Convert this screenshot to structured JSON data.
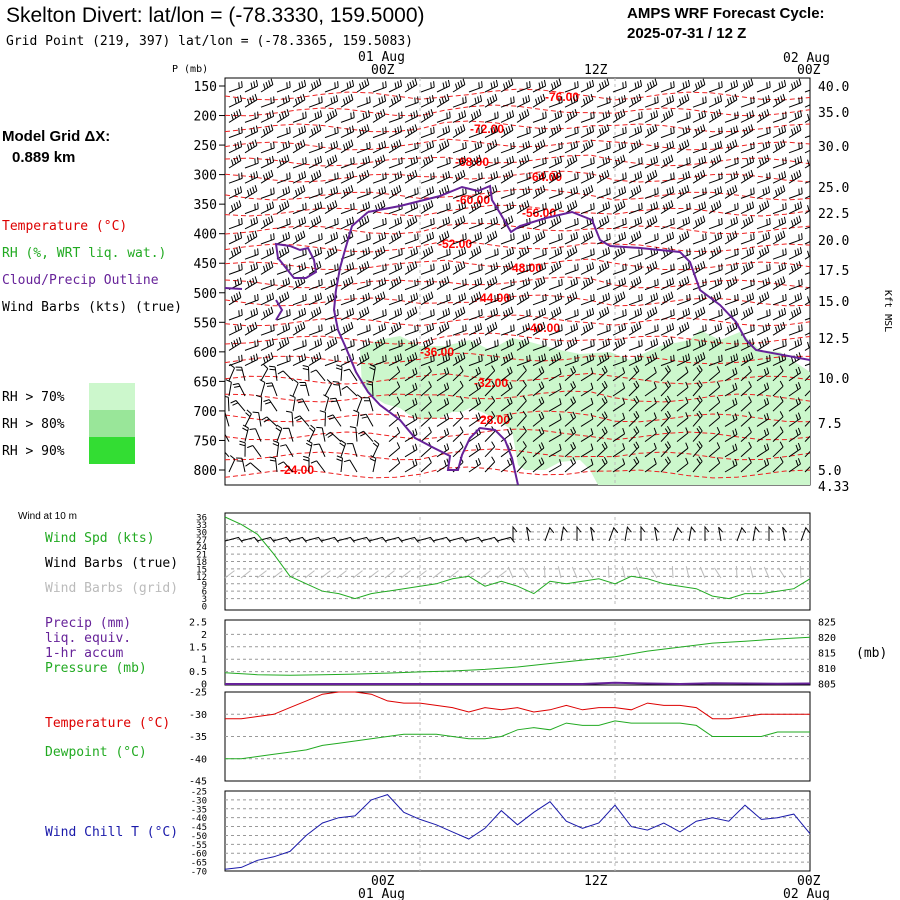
{
  "header": {
    "title": "Skelton Divert:  lat/lon = (-78.3330, 159.5000)",
    "grid_point": "Grid Point (219, 397) lat/lon = (-78.3365, 159.5083)",
    "cycle_line1": "AMPS WRF Forecast Cycle:",
    "cycle_line2": "2025-07-31 / 12  Z"
  },
  "time_axis": {
    "top_dates": [
      "01 Aug",
      "02 Aug"
    ],
    "labels": [
      "00Z",
      "12Z",
      "00Z"
    ],
    "bottom_dates": [
      "01 Aug",
      "02 Aug"
    ]
  },
  "upper_panel": {
    "p_label": "P (mb)",
    "grid_label": "Model Grid ΔX:",
    "grid_value": "0.889 km",
    "legend": [
      {
        "text": "Temperature (°C)",
        "color": "#dd0000"
      },
      {
        "text": "RH (%, WRT liq. wat.)",
        "color": "#22aa22"
      },
      {
        "text": "Cloud/Precip Outline",
        "color": "#662299"
      },
      {
        "text": "Wind Barbs (kts) (true)",
        "color": "#000000"
      }
    ],
    "rh_legend": [
      {
        "text": "RH > 70%",
        "color": "#ccf7cc"
      },
      {
        "text": "RH > 80%",
        "color": "#99e699"
      },
      {
        "text": "RH > 90%",
        "color": "#33dd33"
      }
    ],
    "right_axis_label": "Kft MSL"
  },
  "surface_panel": {
    "title": "Wind at 10 m",
    "legend": [
      {
        "text": "Wind Spd (kts)",
        "color": "#22aa22"
      },
      {
        "text": "Wind Barbs (true)",
        "color": "#000000"
      },
      {
        "text": "Wind Barbs (grid)",
        "color": "#bbbbbb"
      }
    ]
  },
  "precip_panel": {
    "legend": [
      {
        "text": "Precip (mm)",
        "color": "#662299"
      },
      {
        "text": "liq. equiv.",
        "color": "#662299"
      },
      {
        "text": "1-hr accum",
        "color": "#662299"
      },
      {
        "text": "Pressure (mb)",
        "color": "#22aa22"
      }
    ],
    "right_unit": "(mb)"
  },
  "temp_panel": {
    "legend": [
      {
        "text": "Temperature (°C)",
        "color": "#dd0000"
      },
      {
        "text": "Dewpoint (°C)",
        "color": "#22aa22"
      }
    ]
  },
  "chill_panel": {
    "legend": [
      {
        "text": "Wind Chill T (°C)",
        "color": "#1a1aaa"
      }
    ]
  },
  "chart_data": [
    {
      "type": "area",
      "name": "time-height cross section",
      "y_ticks_pressure": [
        "150",
        "200",
        "250",
        "300",
        "350",
        "400",
        "450",
        "500",
        "550",
        "600",
        "650",
        "700",
        "750",
        "800"
      ],
      "y_ticks_kft": [
        "40.0",
        "35.0",
        "30.0",
        "25.0",
        "22.5",
        "20.0",
        "17.5",
        "15.0",
        "12.5",
        "10.0",
        "7.5",
        "5.0",
        "4.33"
      ],
      "isotherm_labels": [
        "-76.00",
        "-72.00",
        "-68.00",
        "-64.00",
        "-60.00",
        "-56.00",
        "-52.00",
        "-48.00",
        "-44.00",
        "-40.00",
        "-36.00",
        "-32.00",
        "-28.00",
        "-24.00"
      ]
    },
    {
      "type": "line",
      "name": "10 m wind speed",
      "x": [
        0,
        1,
        2,
        3,
        4,
        5,
        6,
        7,
        8,
        9,
        10,
        11,
        12,
        13,
        14,
        15,
        16,
        17,
        18,
        19,
        20,
        21,
        22,
        23,
        24,
        25,
        26,
        27,
        28,
        29,
        30,
        31,
        32,
        33,
        34,
        35,
        36
      ],
      "values": [
        36,
        33,
        29,
        21,
        12,
        9,
        6,
        5,
        3,
        5,
        6,
        7,
        8,
        9,
        11,
        12,
        8,
        10,
        8,
        5,
        10,
        9,
        10,
        11,
        9,
        12,
        11,
        9,
        8,
        7,
        4,
        3,
        5,
        5,
        6,
        7,
        11
      ],
      "ylim": [
        0,
        36
      ],
      "y_ticks": [
        "36",
        "33",
        "30",
        "27",
        "24",
        "21",
        "18",
        "15",
        "12",
        "9",
        "6",
        "3",
        "0"
      ]
    },
    {
      "type": "line",
      "name": "precip and pressure",
      "x": [
        0,
        2,
        4,
        6,
        8,
        10,
        12,
        14,
        16,
        18,
        20,
        22,
        24,
        26,
        28,
        30,
        32,
        34,
        36
      ],
      "series": [
        {
          "values": [
            808.6,
            808.0,
            807.8,
            808.0,
            808.2,
            808.5,
            808.9,
            809.2,
            809.7,
            810.5,
            811.6,
            812.7,
            813.8,
            815.6,
            816.9,
            818.2,
            818.8,
            819.5,
            820.1
          ]
        },
        {
          "values": [
            0,
            0,
            0,
            0,
            0,
            0,
            0,
            0,
            0,
            0,
            0,
            0,
            0.05,
            0.02,
            0,
            0.03,
            0.02,
            0.01,
            0.02
          ]
        }
      ],
      "y_ticks_left": [
        "2.5",
        "2",
        "1.5",
        "1",
        "0.5",
        "0"
      ],
      "y_ticks_right": [
        "825",
        "820",
        "815",
        "810",
        "805"
      ],
      "ylim_left": [
        0,
        2.5
      ],
      "ylim_right": [
        805,
        825
      ]
    },
    {
      "type": "line",
      "name": "temperature and dewpoint",
      "x": [
        0,
        1,
        2,
        3,
        4,
        5,
        6,
        7,
        8,
        9,
        10,
        11,
        12,
        13,
        14,
        15,
        16,
        17,
        18,
        19,
        20,
        21,
        22,
        23,
        24,
        25,
        26,
        27,
        28,
        29,
        30,
        31,
        32,
        33,
        34,
        35,
        36
      ],
      "series": [
        {
          "values": [
            -31,
            -31,
            -30.5,
            -30,
            -28.5,
            -27,
            -25.5,
            -25,
            -25,
            -25.5,
            -27,
            -27.5,
            -27.5,
            -28,
            -28.5,
            -29.5,
            -28.5,
            -29,
            -28.5,
            -29.5,
            -29,
            -28,
            -29,
            -28.5,
            -28.5,
            -29,
            -27.5,
            -28,
            -28,
            -28.5,
            -31,
            -31,
            -30.5,
            -30,
            -30,
            -30,
            -30
          ]
        },
        {
          "values": [
            -40,
            -40,
            -39.5,
            -39,
            -38.5,
            -38,
            -37,
            -36.5,
            -36,
            -35.5,
            -35,
            -34.5,
            -34.5,
            -34.5,
            -35,
            -35.5,
            -35.5,
            -35,
            -33.5,
            -33,
            -33.5,
            -32,
            -32.5,
            -32.5,
            -31.5,
            -32,
            -32,
            -32,
            -32,
            -32.5,
            -35,
            -35,
            -35,
            -35,
            -34,
            -34,
            -34
          ]
        }
      ],
      "ylim": [
        -45,
        -25
      ],
      "y_ticks": [
        "-25",
        "-30",
        "-35",
        "-40",
        "-45"
      ]
    },
    {
      "type": "line",
      "name": "wind chill",
      "x": [
        0,
        1,
        2,
        3,
        4,
        5,
        6,
        7,
        8,
        9,
        10,
        11,
        12,
        13,
        14,
        15,
        16,
        17,
        18,
        19,
        20,
        21,
        22,
        23,
        24,
        25,
        26,
        27,
        28,
        29,
        30,
        31,
        32,
        33,
        34,
        35,
        36
      ],
      "values": [
        -69,
        -68,
        -64,
        -62,
        -59,
        -50,
        -43,
        -40,
        -39,
        -30,
        -27,
        -37,
        -41,
        -44,
        -48,
        -52,
        -46,
        -36,
        -44,
        -37,
        -31,
        -42,
        -46,
        -43,
        -33,
        -45,
        -47,
        -43,
        -48,
        -42,
        -40,
        -42,
        -33,
        -41,
        -40,
        -38,
        -49
      ],
      "ylim": [
        -70,
        -25
      ],
      "y_ticks": [
        "-25",
        "-30",
        "-35",
        "-40",
        "-45",
        "-50",
        "-55",
        "-60",
        "-65",
        "-70"
      ]
    }
  ]
}
